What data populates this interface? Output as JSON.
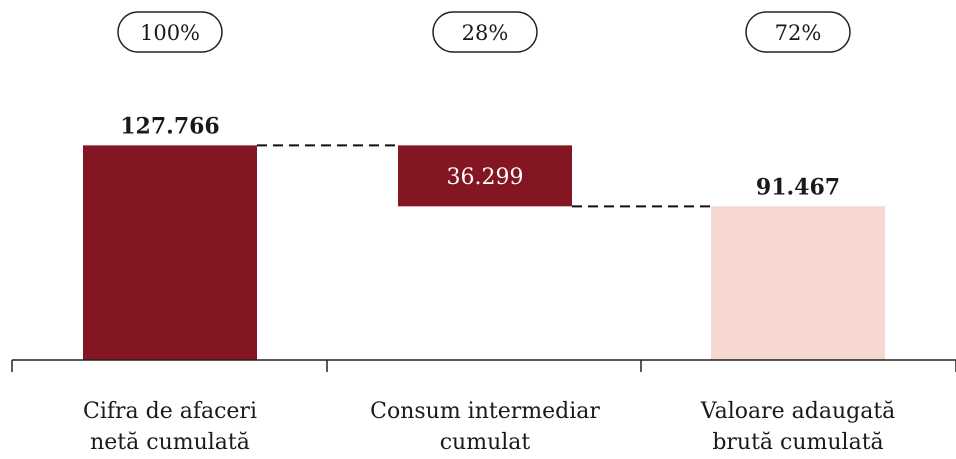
{
  "chart_data": {
    "type": "waterfall",
    "categories": [
      [
        "Cifra de afaceri",
        "netă cumulată"
      ],
      [
        "Consum intermediar",
        "cumulat"
      ],
      [
        "Valoare adaugată",
        "brută cumulată"
      ]
    ],
    "values": [
      127.766,
      36.299,
      91.467
    ],
    "value_labels": [
      "127.766",
      "36.299",
      "91.467"
    ],
    "percent_labels": [
      "100%",
      "28%",
      "72%"
    ],
    "bar_kinds": [
      "total",
      "decrease",
      "total"
    ],
    "ylim": [
      0,
      140
    ],
    "grid": false,
    "legend": "none",
    "colors": {
      "dark_bar": "#831622",
      "light_bar": "#F7D7D1",
      "axis": "#222222",
      "connector": "#111111",
      "text": "#1a1a1a",
      "inner_label": "#ffffff"
    }
  }
}
